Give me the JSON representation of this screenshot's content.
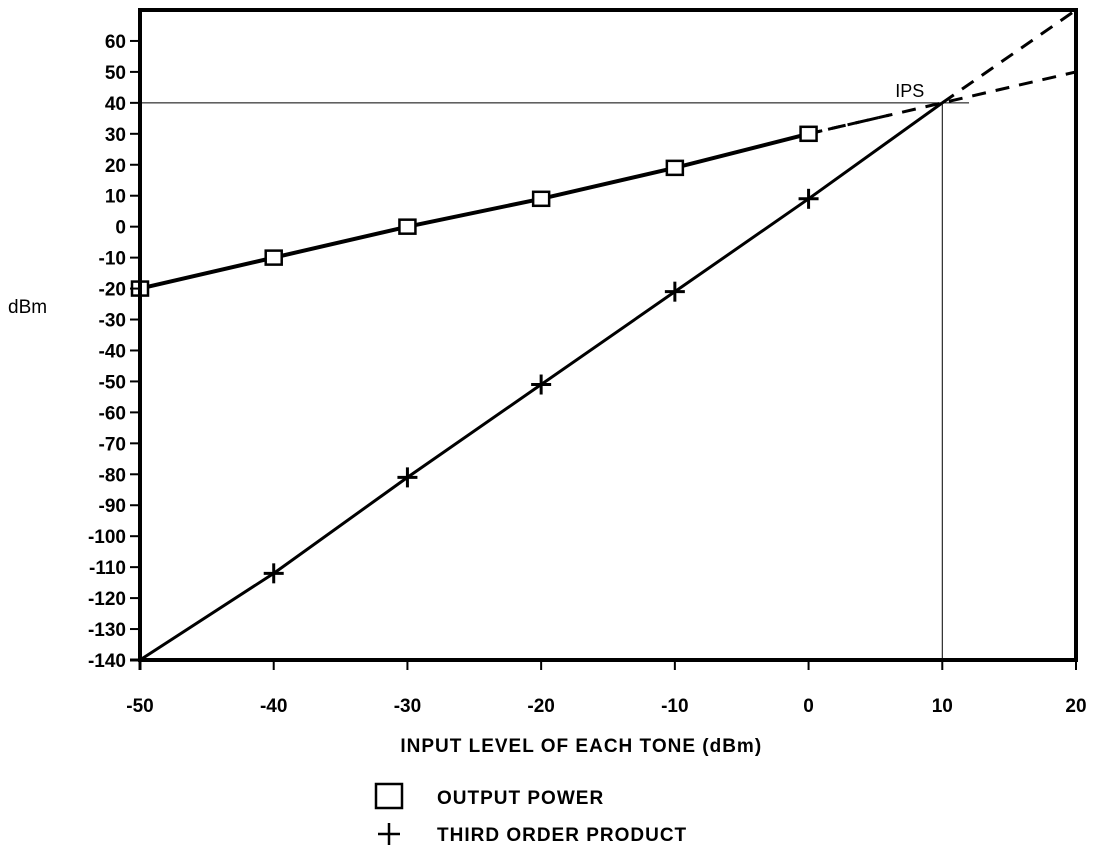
{
  "chart_data": {
    "type": "line",
    "title": "",
    "xlabel": "INPUT LEVEL OF EACH TONE (dBm)",
    "ylabel": "dBm",
    "xlim": [
      -50,
      20
    ],
    "ylim": [
      -140,
      70
    ],
    "xticks": [
      -50,
      -40,
      -30,
      -20,
      -10,
      0,
      10,
      20
    ],
    "yticks": [
      60,
      50,
      40,
      30,
      20,
      10,
      0,
      -10,
      -20,
      -30,
      -40,
      -50,
      -60,
      -70,
      -80,
      -90,
      -100,
      -110,
      -120,
      -130,
      -140
    ],
    "grid": false,
    "legend_position": "bottom-center",
    "series": [
      {
        "name": "OUTPUT POWER",
        "marker": "square",
        "x": [
          -50,
          -40,
          -30,
          -20,
          -10,
          0
        ],
        "y": [
          -20,
          -10,
          0,
          9,
          19,
          30
        ],
        "extrapolation": {
          "x": [
            0,
            20
          ],
          "y": [
            30,
            50
          ]
        }
      },
      {
        "name": "THIRD ORDER PRODUCT",
        "marker": "plus",
        "x": [
          -50,
          -40,
          -30,
          -20,
          -10,
          0
        ],
        "y": [
          -140,
          -112,
          -81,
          -51,
          -21,
          9
        ],
        "extrapolation": {
          "x": [
            10,
            20
          ],
          "y": [
            40,
            70
          ]
        }
      }
    ],
    "annotations": [
      {
        "text": "IPS",
        "x": 10,
        "y": 40
      }
    ],
    "reference_lines": {
      "intercept_x": 10,
      "intercept_y": 40
    }
  },
  "legend": {
    "items": [
      {
        "symbol": "square",
        "label": "OUTPUT POWER"
      },
      {
        "symbol": "plus",
        "label": "THIRD ORDER PRODUCT"
      }
    ]
  }
}
